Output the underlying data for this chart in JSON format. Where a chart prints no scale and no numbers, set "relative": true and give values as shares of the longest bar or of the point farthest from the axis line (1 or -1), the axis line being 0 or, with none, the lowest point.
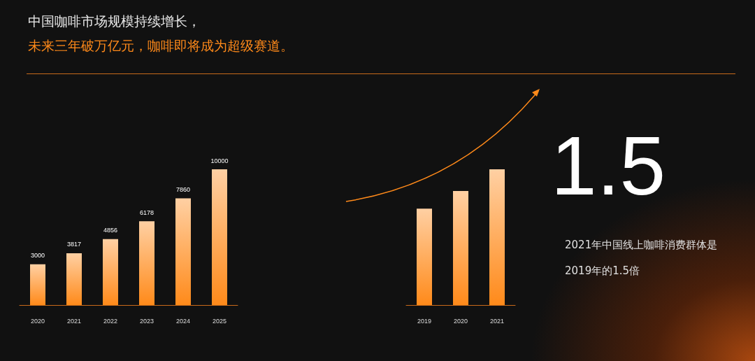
{
  "chart_data": [
    {
      "type": "bar",
      "title": "中国咖啡市场规模持续增长，",
      "subtitle": "未来三年破万亿元，咖啡即将成为超级赛道。",
      "categories": [
        "2020",
        "2021",
        "2022",
        "2023",
        "2024",
        "2025"
      ],
      "values": [
        3000,
        3817,
        4856,
        6178,
        7860,
        10000
      ],
      "color": "#ff8a1a",
      "data_labels": true
    },
    {
      "type": "bar",
      "relative": true,
      "categories": [
        "2019",
        "2020",
        "2021"
      ],
      "values": [
        0.71,
        0.84,
        1
      ],
      "color": "#ff8a1a",
      "annotations": [
        "1.5",
        "2021年中国线上咖啡消费群体是2019年的1.5倍"
      ]
    }
  ]
}
